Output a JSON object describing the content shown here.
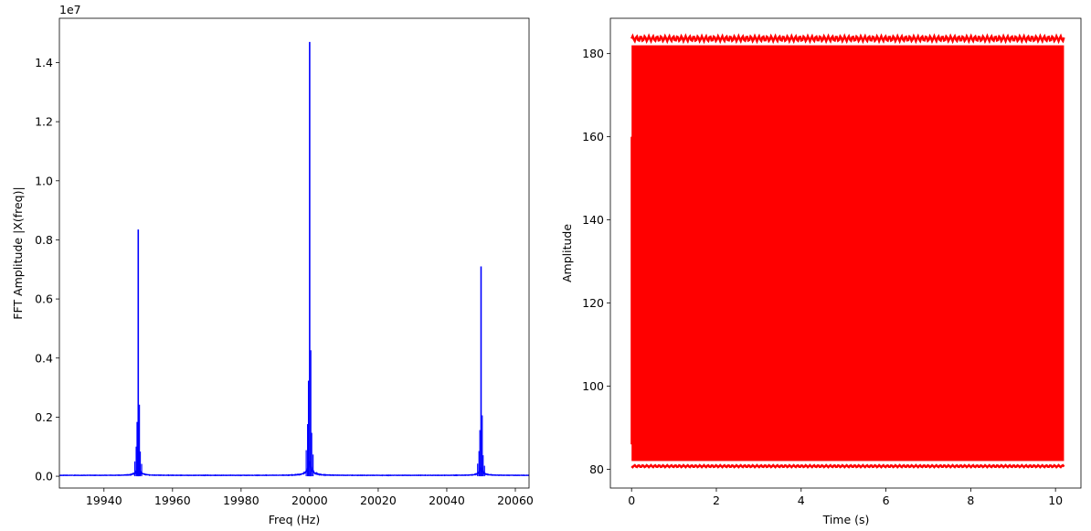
{
  "chart_data": [
    {
      "type": "line",
      "title": "",
      "xlabel": "Freq (Hz)",
      "ylabel": "FFT Amplitude |X(freq)|",
      "y_offset_label": "1e7",
      "xlim": [
        19927,
        20064
      ],
      "ylim": [
        -400000,
        15500000
      ],
      "x_ticks": [
        19940,
        19960,
        19980,
        20000,
        20020,
        20040,
        20060
      ],
      "x_tick_labels": [
        "19940",
        "19960",
        "19980",
        "20000",
        "20020",
        "20040",
        "20060"
      ],
      "y_ticks": [
        0,
        2000000,
        4000000,
        6000000,
        8000000,
        10000000,
        12000000,
        14000000
      ],
      "y_tick_labels": [
        "0.0",
        "0.2",
        "0.4",
        "0.6",
        "0.8",
        "1.0",
        "1.2",
        "1.4"
      ],
      "color": "#0000ff",
      "peaks": [
        {
          "freq": 19950,
          "amplitude": 8350000
        },
        {
          "freq": 20000,
          "amplitude": 14700000
        },
        {
          "freq": 20050,
          "amplitude": 7100000
        }
      ],
      "baseline": 30000
    },
    {
      "type": "line",
      "title": "",
      "xlabel": "Time (s)",
      "ylabel": "Amplitude",
      "xlim": [
        -0.5,
        10.6
      ],
      "ylim": [
        75.5,
        188.5
      ],
      "x_ticks": [
        0,
        2,
        4,
        6,
        8,
        10
      ],
      "x_tick_labels": [
        "0",
        "2",
        "4",
        "6",
        "8",
        "10"
      ],
      "y_ticks": [
        80,
        100,
        120,
        140,
        160,
        180
      ],
      "y_tick_labels": [
        "80",
        "100",
        "120",
        "140",
        "160",
        "180"
      ],
      "color": "#ff0000",
      "signal": {
        "t_start": 0,
        "t_end": 10.2,
        "min": 81,
        "max": 183,
        "envelope_ripple": 1.2
      }
    }
  ]
}
